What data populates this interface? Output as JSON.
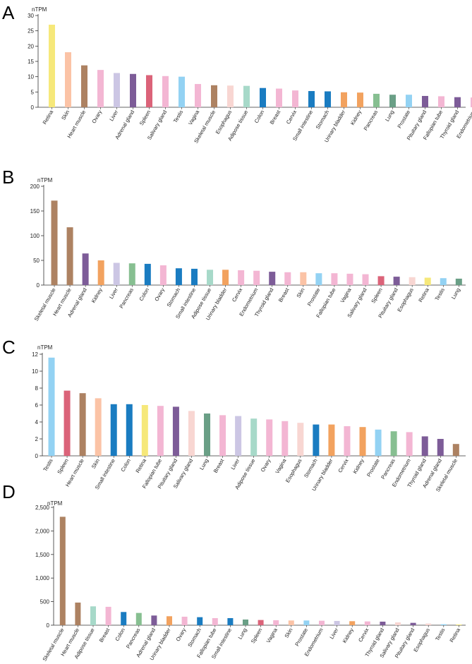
{
  "colors": {
    "yellow": "#f6e87a",
    "peach": "#fbc3a6",
    "brown": "#ad8262",
    "pink": "#f3b6d3",
    "lavender": "#ccc6e4",
    "purple": "#7d5c98",
    "red": "#db6379",
    "lightblue": "#93d2f3",
    "lightpink": "#f8d6d2",
    "mint": "#a7d9c9",
    "blue": "#1a7cc1",
    "orange": "#f2a25f",
    "green": "#87bf91",
    "teal": "#6a9f86"
  },
  "chart_data": [
    {
      "type": "bar",
      "panel": "A",
      "unit_label": "nTPM",
      "ylim": [
        0,
        30
      ],
      "yticks": [
        "0",
        "5",
        "10",
        "15",
        "20",
        "25",
        "30"
      ],
      "tick_values": [
        0,
        5,
        10,
        15,
        20,
        25,
        30
      ],
      "categories": [
        "Retina",
        "Skin",
        "Heart muscle",
        "Ovary",
        "Liver",
        "Adrenal gland",
        "Spleen",
        "Salivary gland",
        "Testis",
        "Vagina",
        "Skeletal muscle",
        "Esophagus",
        "Adipose tissue",
        "Colon",
        "Breast",
        "Cervix",
        "Small intestine",
        "Stomach",
        "Urinary bladder",
        "Kidney",
        "Pancreas",
        "Lung",
        "Prostate",
        "Pituitary gland",
        "Fallopian tube",
        "Thyroid gland",
        "Endometrium"
      ],
      "values": [
        27.0,
        18.0,
        13.7,
        12.2,
        11.2,
        10.9,
        10.5,
        10.2,
        10.0,
        7.6,
        7.2,
        7.1,
        7.0,
        6.3,
        6.1,
        5.5,
        5.3,
        5.2,
        4.9,
        4.8,
        4.4,
        4.1,
        4.1,
        3.7,
        3.6,
        3.3,
        3.2
      ],
      "bar_colors": [
        "yellow",
        "peach",
        "brown",
        "pink",
        "lavender",
        "purple",
        "red",
        "pink",
        "lightblue",
        "pink",
        "brown",
        "lightpink",
        "mint",
        "blue",
        "pink",
        "pink",
        "blue",
        "blue",
        "orange",
        "orange",
        "green",
        "teal",
        "lightblue",
        "purple",
        "pink",
        "purple",
        "pink"
      ]
    },
    {
      "type": "bar",
      "panel": "B",
      "unit_label": "nTPM",
      "ylim": [
        0,
        200
      ],
      "yticks": [
        "0",
        "50",
        "100",
        "150",
        "200"
      ],
      "tick_values": [
        0,
        50,
        100,
        150,
        200
      ],
      "categories": [
        "Skeletal muscle",
        "Heart muscle",
        "Adrenal gland",
        "Kidney",
        "Liver",
        "Pancreas",
        "Colon",
        "Ovary",
        "Stomach",
        "Small intestine",
        "Adipose tissue",
        "Urinary bladder",
        "Cervix",
        "Endometrium",
        "Thyroid gland",
        "Breast",
        "Skin",
        "Prostate",
        "Fallopian tube",
        "Vagina",
        "Salivary gland",
        "Spleen",
        "Pituitary gland",
        "Esophagus",
        "Retina",
        "Testis",
        "Lung"
      ],
      "values": [
        171,
        117,
        64,
        50,
        45,
        44,
        43,
        40,
        34,
        33,
        31,
        31,
        30,
        29,
        27,
        26,
        26,
        24,
        24,
        23,
        22,
        18,
        17,
        16,
        15,
        14,
        13
      ],
      "bar_colors": [
        "brown",
        "brown",
        "purple",
        "orange",
        "lavender",
        "green",
        "blue",
        "pink",
        "blue",
        "blue",
        "mint",
        "orange",
        "pink",
        "pink",
        "purple",
        "pink",
        "peach",
        "lightblue",
        "pink",
        "pink",
        "pink",
        "red",
        "purple",
        "lightpink",
        "yellow",
        "lightblue",
        "teal"
      ]
    },
    {
      "type": "bar",
      "panel": "C",
      "unit_label": "nTPM",
      "ylim": [
        0,
        12
      ],
      "yticks": [
        "0",
        "2",
        "4",
        "6",
        "8",
        "10",
        "12"
      ],
      "tick_values": [
        0,
        2,
        4,
        6,
        8,
        10,
        12
      ],
      "categories": [
        "Testis",
        "Spleen",
        "Heart muscle",
        "Skin",
        "Small intestine",
        "Colon",
        "Retina",
        "Fallopian tube",
        "Pituitary gland",
        "Salivary gland",
        "Lung",
        "Breast",
        "Liver",
        "Adipose tissue",
        "Ovary",
        "Vagina",
        "Esophagus",
        "Stomach",
        "Urinary bladder",
        "Cervix",
        "Kidney",
        "Prostate",
        "Pancreas",
        "Endometrium",
        "Thyroid gland",
        "Adrenal gland",
        "Skeletal muscle"
      ],
      "values": [
        11.6,
        7.7,
        7.4,
        6.8,
        6.1,
        6.1,
        6.0,
        5.9,
        5.8,
        5.3,
        5.0,
        4.8,
        4.7,
        4.4,
        4.3,
        4.1,
        3.9,
        3.7,
        3.7,
        3.5,
        3.4,
        3.1,
        2.9,
        2.8,
        2.3,
        2.0,
        1.4
      ],
      "bar_colors": [
        "lightblue",
        "red",
        "brown",
        "peach",
        "blue",
        "blue",
        "yellow",
        "pink",
        "purple",
        "lightpink",
        "teal",
        "pink",
        "lavender",
        "mint",
        "pink",
        "pink",
        "lightpink",
        "blue",
        "orange",
        "pink",
        "orange",
        "lightblue",
        "green",
        "pink",
        "purple",
        "purple",
        "brown"
      ]
    },
    {
      "type": "bar",
      "panel": "D",
      "unit_label": "nTPM",
      "ylim": [
        0,
        2500
      ],
      "yticks": [
        "0",
        "500",
        "1,000",
        "1,500",
        "2,000",
        "2,500"
      ],
      "tick_values": [
        0,
        500,
        1000,
        1500,
        2000,
        2500
      ],
      "categories": [
        "Skeletal muscle",
        "Heart muscle",
        "Adipose tissue",
        "Breast",
        "Colon",
        "Pancreas",
        "Adrenal gland",
        "Urinary bladder",
        "Ovary",
        "Stomach",
        "Fallopian tube",
        "Small intestine",
        "Lung",
        "Spleen",
        "Vagina",
        "Skin",
        "Prostate",
        "Endometrium",
        "Liver",
        "Kidney",
        "Cervix",
        "Thyroid gland",
        "Salivary gland",
        "Pituitary gland",
        "Esophagus",
        "Testis",
        "Retina"
      ],
      "values": [
        2300,
        480,
        400,
        390,
        280,
        260,
        205,
        190,
        180,
        170,
        150,
        150,
        120,
        110,
        105,
        100,
        100,
        95,
        90,
        85,
        80,
        75,
        60,
        50,
        35,
        20,
        15
      ],
      "bar_colors": [
        "brown",
        "brown",
        "mint",
        "pink",
        "blue",
        "green",
        "purple",
        "orange",
        "pink",
        "blue",
        "pink",
        "blue",
        "teal",
        "red",
        "pink",
        "peach",
        "lightblue",
        "pink",
        "lavender",
        "orange",
        "pink",
        "purple",
        "lightpink",
        "purple",
        "lightpink",
        "lightblue",
        "yellow"
      ]
    }
  ]
}
